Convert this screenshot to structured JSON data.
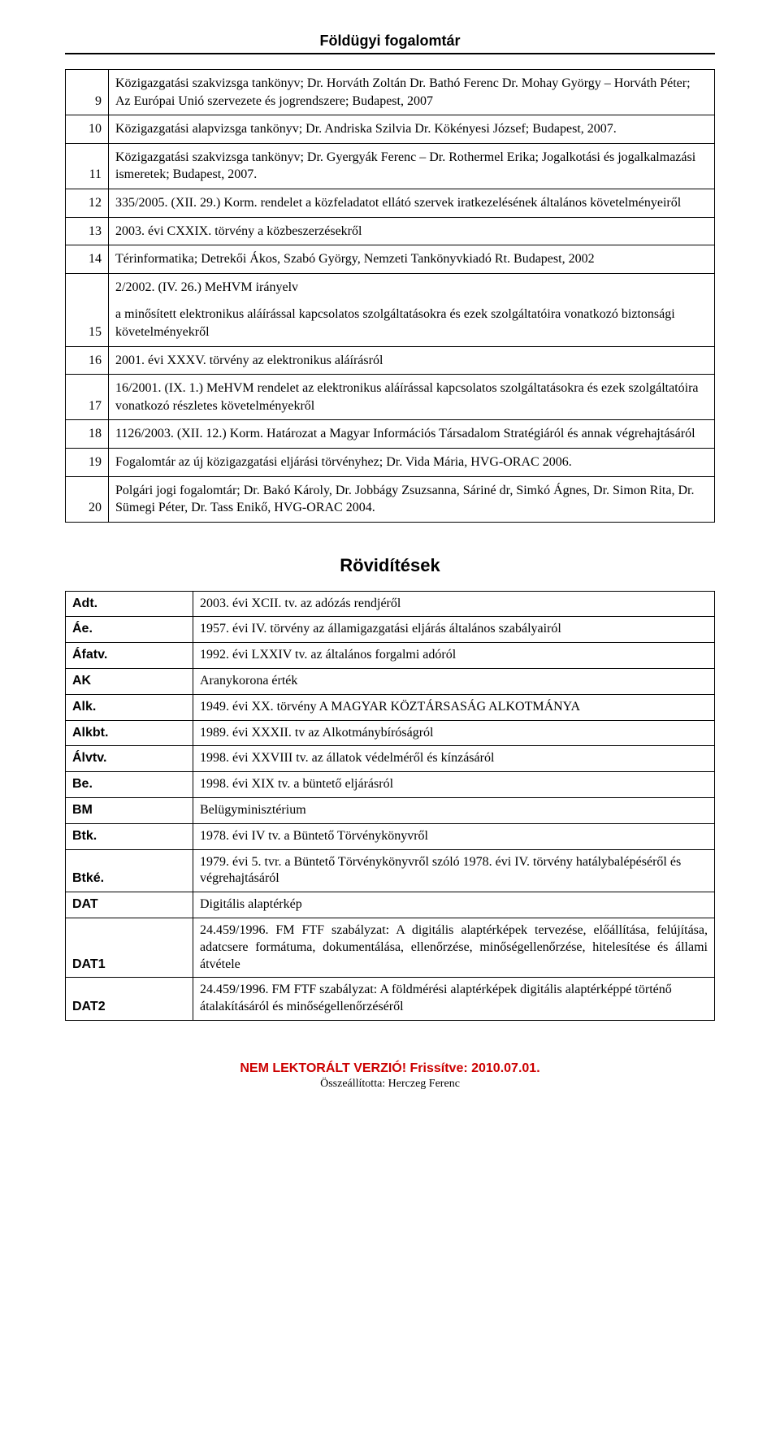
{
  "header": {
    "title": "Földügyi fogalomtár"
  },
  "mainTable": {
    "rows": [
      {
        "num": "9",
        "text": "Közigazgatási szakvizsga tankönyv; Dr. Horváth Zoltán Dr. Bathó Ferenc Dr. Mohay György – Horváth Péter; Az Európai Unió szervezete és jogrendszere; Budapest, 2007"
      },
      {
        "num": "10",
        "text": "Közigazgatási alapvizsga tankönyv; Dr. Andriska Szilvia Dr. Kökényesi József; Budapest, 2007."
      },
      {
        "num": "11",
        "text": "Közigazgatási szakvizsga tankönyv; Dr. Gyergyák Ferenc – Dr. Rothermel Erika; Jogalkotási és jogalkalmazási ismeretek; Budapest, 2007."
      },
      {
        "num": "12",
        "text": "335/2005. (XII. 29.) Korm. rendelet a közfeladatot ellátó szervek iratkezelésének általános követelményeiről"
      },
      {
        "num": "13",
        "text": "2003. évi CXXIX. törvény a közbeszerzésekről"
      },
      {
        "num": "14",
        "text": "Térinformatika; Detrekői Ákos, Szabó György, Nemzeti Tankönyvkiadó Rt. Budapest, 2002"
      },
      {
        "num": "15",
        "text1": "2/2002. (IV. 26.) MeHVM irányelv",
        "text2": "a minősített elektronikus aláírással kapcsolatos szolgáltatásokra és ezek szolgáltatóira vonatkozó biztonsági követelményekről"
      },
      {
        "num": "16",
        "text": "2001. évi XXXV. törvény az elektronikus aláírásról"
      },
      {
        "num": "17",
        "text": "16/2001. (IX. 1.) MeHVM rendelet az elektronikus aláírással kapcsolatos szolgáltatásokra és ezek szolgáltatóira vonatkozó részletes követelményekről"
      },
      {
        "num": "18",
        "text": "1126/2003. (XII. 12.) Korm. Határozat a Magyar Információs Társadalom Stratégiáról és annak végrehajtásáról"
      },
      {
        "num": "19",
        "text": "Fogalomtár az új közigazgatási eljárási törvényhez; Dr. Vida Mária, HVG-ORAC 2006."
      },
      {
        "num": "20",
        "text": "Polgári jogi fogalomtár; Dr. Bakó Károly, Dr. Jobbágy Zsuzsanna, Sáriné dr, Simkó Ágnes, Dr. Simon Rita, Dr. Sümegi Péter, Dr. Tass Enikő, HVG-ORAC 2004."
      }
    ]
  },
  "abbrSection": {
    "title": "Rövidítések",
    "rows": [
      {
        "key": "Adt.",
        "val": "2003. évi XCII. tv. az adózás rendjéről"
      },
      {
        "key": "Áe.",
        "val": "1957. évi IV. törvény az államigazgatási eljárás általános szabályairól"
      },
      {
        "key": "Áfatv.",
        "val": "1992. évi LXXIV tv. az általános forgalmi adóról"
      },
      {
        "key": "AK",
        "val": "Aranykorona érték"
      },
      {
        "key": "Alk.",
        "val": "1949. évi XX. törvény A MAGYAR KÖZTÁRSASÁG ALKOTMÁNYA"
      },
      {
        "key": "Alkbt.",
        "val": "1989. évi XXXII. tv az Alkotmánybíróságról"
      },
      {
        "key": "Álvtv.",
        "val": "1998. évi XXVIII tv. az állatok védelméről és kínzásáról"
      },
      {
        "key": "Be.",
        "val": "1998. évi XIX tv. a büntető eljárásról"
      },
      {
        "key": "BM",
        "val": "Belügyminisztérium"
      },
      {
        "key": "Btk.",
        "val": "1978. évi IV tv. a Büntető Törvénykönyvről"
      },
      {
        "key": "Btké.",
        "val": "1979. évi 5. tvr. a Büntető Törvénykönyvről szóló 1978. évi IV. törvény hatálybalépéséről és végrehajtásáról"
      },
      {
        "key": "DAT",
        "val": "Digitális alaptérkép"
      },
      {
        "key": "DAT1",
        "val": "24.459/1996. FM FTF szabályzat: A digitális alaptérképek tervezése, előállítása, felújítása, adatcsere formátuma, dokumentálása, ellenőrzése, minőségellenőrzése, hitelesítése és állami átvétele",
        "justify": true
      },
      {
        "key": "DAT2",
        "val": "24.459/1996. FM FTF szabályzat: A földmérési alaptérképek digitális alaptérképpé történő átalakításáról és minőségellenőrzéséről"
      }
    ]
  },
  "footer": {
    "line1": "NEM LEKTORÁLT VERZIÓ! Frissítve: 2010.07.01.",
    "line2": "Összeállította: Herczeg Ferenc"
  },
  "colors": {
    "text": "#000000",
    "background": "#ffffff",
    "footerAccent": "#cc0000",
    "border": "#000000"
  }
}
